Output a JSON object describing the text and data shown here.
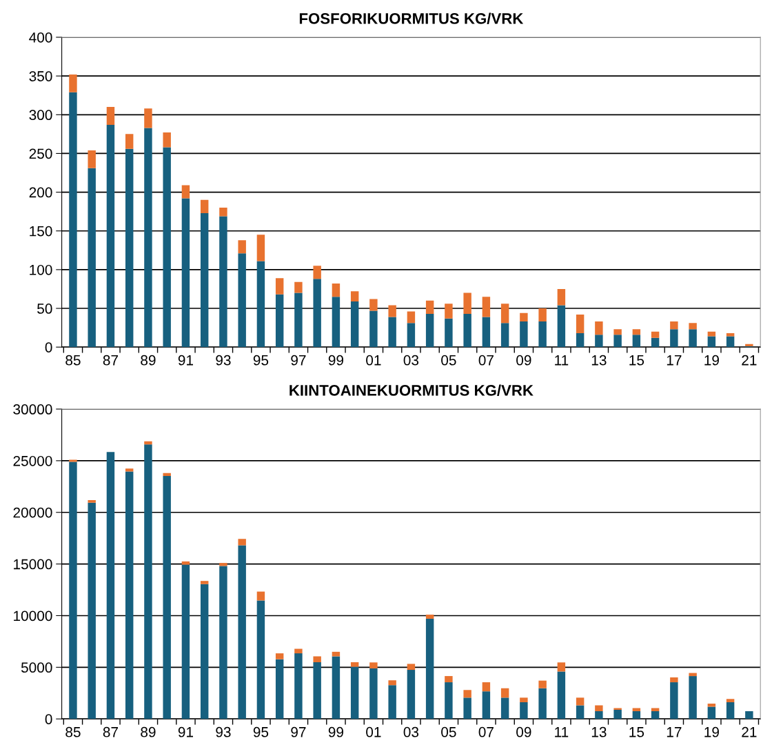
{
  "chart_data": [
    {
      "type": "bar",
      "title": "FOSFORIKUORMITUS KG/VRK",
      "stacked": true,
      "grid": "y",
      "categories": [
        "85",
        null,
        "87",
        null,
        "89",
        null,
        "91",
        null,
        "93",
        null,
        "95",
        null,
        "97",
        null,
        "99",
        null,
        "01",
        null,
        "03",
        null,
        "05",
        null,
        "07",
        null,
        "09",
        null,
        "11",
        null,
        "13",
        null,
        "15",
        null,
        "17",
        null,
        "19",
        null,
        "21"
      ],
      "series": [
        {
          "color": "#17607f",
          "values": [
            329,
            231,
            287,
            256,
            283,
            258,
            192,
            173,
            169,
            121,
            111,
            68,
            70,
            88,
            65,
            59,
            47,
            39,
            31,
            43,
            37,
            43,
            39,
            31,
            33,
            33,
            54,
            18,
            16,
            16,
            16,
            12,
            23,
            23,
            14,
            14,
            1
          ]
        },
        {
          "color": "#e8722f",
          "values": [
            23,
            23,
            23,
            19,
            25,
            19,
            17,
            17,
            11,
            17,
            34,
            21,
            14,
            17,
            17,
            13,
            15,
            15,
            15,
            17,
            19,
            27,
            26,
            25,
            11,
            17,
            21,
            24,
            17,
            7,
            7,
            8,
            10,
            8,
            6,
            4,
            3
          ]
        }
      ],
      "ylim": [
        0,
        400
      ],
      "yticks": [
        0,
        50,
        100,
        150,
        200,
        250,
        300,
        350,
        400
      ]
    },
    {
      "type": "bar",
      "title": "KIINTOAINEKUORMITUS KG/VRK",
      "stacked": true,
      "grid": "y",
      "categories": [
        "85",
        null,
        "87",
        null,
        "89",
        null,
        "91",
        null,
        "93",
        null,
        "95",
        null,
        "97",
        null,
        "99",
        null,
        "01",
        null,
        "03",
        null,
        "05",
        null,
        "07",
        null,
        "09",
        null,
        "11",
        null,
        "13",
        null,
        "15",
        null,
        "17",
        null,
        "19",
        null,
        "21"
      ],
      "series": [
        {
          "color": "#17607f",
          "values": [
            24900,
            20930,
            25850,
            23960,
            26570,
            23520,
            14940,
            13050,
            14810,
            16810,
            11470,
            5780,
            6350,
            5490,
            6060,
            5050,
            4890,
            3270,
            4750,
            9700,
            3550,
            2060,
            2670,
            2060,
            1620,
            2970,
            4590,
            1320,
            740,
            880,
            740,
            740,
            3550,
            4150,
            1180,
            1620,
            740
          ]
        },
        {
          "color": "#e8722f",
          "values": [
            200,
            260,
            0,
            280,
            310,
            280,
            310,
            310,
            290,
            620,
            860,
            570,
            440,
            570,
            440,
            440,
            580,
            470,
            580,
            400,
            600,
            740,
            880,
            910,
            440,
            740,
            880,
            740,
            580,
            170,
            310,
            310,
            470,
            300,
            310,
            310,
            0
          ]
        }
      ],
      "ylim": [
        0,
        30000
      ],
      "yticks": [
        0,
        5000,
        10000,
        15000,
        20000,
        25000,
        30000
      ]
    }
  ]
}
